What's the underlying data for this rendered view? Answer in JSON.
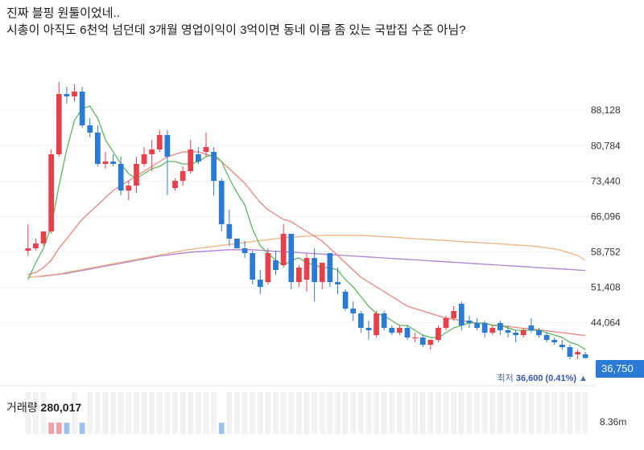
{
  "caption": {
    "line1": "진짜 블핑 원툴이었네..",
    "line2": "시총이 아직도 6천억 넘던데 3개월 영업이익이 3억이면 동네 이름 좀 있는 국밥집 수준 아님?"
  },
  "current_price": "36,750",
  "low": {
    "label": "최저",
    "value": "36,600 (0.41%)",
    "marker": "▲"
  },
  "volume": {
    "label": "거래량",
    "value": "280,017",
    "scale": "8.36m"
  },
  "colors": {
    "up": "#e8404a",
    "down": "#2b7bd6",
    "ma5": "#5cb85c",
    "ma20": "#e8847c",
    "ma60": "#f0b37e",
    "ma120": "#b07ed6",
    "badge": "#2b7bd6"
  },
  "chart_data": {
    "type": "candlestick",
    "y_ticks": [
      "88,128",
      "80,784",
      "73,440",
      "66,096",
      "58,752",
      "51,408",
      "44,064"
    ],
    "ylim": [
      34000,
      96000
    ],
    "grid": true,
    "series": [
      {
        "name": "candles",
        "values": [
          [
            59000,
            64500,
            58000,
            59500
          ],
          [
            59500,
            61500,
            59000,
            60500
          ],
          [
            60500,
            62500,
            60000,
            63000
          ],
          [
            63000,
            80000,
            62500,
            79000
          ],
          [
            79000,
            94000,
            78500,
            91500
          ],
          [
            91500,
            93000,
            89500,
            91000
          ],
          [
            91000,
            93500,
            90000,
            92000
          ],
          [
            92000,
            93000,
            84500,
            85000
          ],
          [
            85000,
            86500,
            82500,
            83500
          ],
          [
            83500,
            85000,
            76500,
            77000
          ],
          [
            77000,
            79500,
            76000,
            77500
          ],
          [
            77500,
            79000,
            76500,
            77000
          ],
          [
            77000,
            78500,
            70500,
            71500
          ],
          [
            71500,
            73500,
            69500,
            72500
          ],
          [
            72500,
            78500,
            71000,
            77000
          ],
          [
            77000,
            80500,
            76500,
            79000
          ],
          [
            79000,
            82000,
            75500,
            80000
          ],
          [
            80000,
            84000,
            79500,
            83000
          ],
          [
            83000,
            84000,
            70500,
            78500
          ],
          [
            72000,
            74000,
            71500,
            73500
          ],
          [
            73500,
            76500,
            72500,
            75500
          ],
          [
            75500,
            82000,
            75000,
            80000
          ],
          [
            79000,
            80500,
            77000,
            77500
          ],
          [
            79500,
            83500,
            78500,
            80500
          ],
          [
            79500,
            80500,
            70500,
            73500
          ],
          [
            73500,
            74000,
            63000,
            64500
          ],
          [
            64500,
            67500,
            60000,
            61500
          ],
          [
            61500,
            61500,
            59500,
            59500
          ],
          [
            59500,
            61000,
            57500,
            58500
          ],
          [
            58500,
            59000,
            52000,
            53000
          ],
          [
            53000,
            55000,
            50000,
            51500
          ],
          [
            52500,
            59500,
            52000,
            58500
          ],
          [
            57000,
            59000,
            54000,
            55000
          ],
          [
            56000,
            64500,
            55500,
            62500
          ],
          [
            62500,
            62500,
            51000,
            52500
          ],
          [
            52500,
            56000,
            51500,
            55500
          ],
          [
            53000,
            58500,
            50500,
            57500
          ],
          [
            57500,
            59500,
            48500,
            52500
          ],
          [
            52500,
            56500,
            51000,
            56500
          ],
          [
            58500,
            58500,
            51500,
            52500
          ],
          [
            52500,
            55500,
            50000,
            52000
          ],
          [
            50500,
            51000,
            46500,
            47000
          ],
          [
            47000,
            48500,
            44500,
            46000
          ],
          [
            46000,
            46500,
            42000,
            43000
          ],
          [
            43000,
            44500,
            40500,
            42500
          ],
          [
            41500,
            46500,
            41000,
            46000
          ],
          [
            46000,
            46500,
            42500,
            43000
          ],
          [
            43000,
            43500,
            41500,
            42000
          ],
          [
            42000,
            43500,
            41500,
            43000
          ],
          [
            43000,
            43500,
            40500,
            41000
          ],
          [
            41000,
            42000,
            40000,
            41000
          ],
          [
            41000,
            41500,
            39000,
            39500
          ],
          [
            39500,
            40500,
            38500,
            40500
          ],
          [
            40500,
            43500,
            40000,
            43000
          ],
          [
            43000,
            45500,
            42500,
            45000
          ],
          [
            45000,
            47500,
            44500,
            46500
          ],
          [
            48000,
            48500,
            42500,
            43500
          ],
          [
            44500,
            45500,
            43000,
            44000
          ],
          [
            44000,
            45000,
            42500,
            43000
          ],
          [
            44000,
            44500,
            41000,
            42000
          ],
          [
            42000,
            43500,
            41500,
            43000
          ],
          [
            44000,
            44500,
            41500,
            42500
          ],
          [
            42500,
            43500,
            41000,
            42000
          ],
          [
            42000,
            42500,
            40000,
            41500
          ],
          [
            41500,
            43000,
            41000,
            42500
          ],
          [
            43500,
            45000,
            42000,
            42500
          ],
          [
            42500,
            43000,
            41000,
            41500
          ],
          [
            41500,
            42000,
            40000,
            40500
          ],
          [
            40500,
            41000,
            39500,
            40000
          ],
          [
            39500,
            40500,
            38500,
            39000
          ],
          [
            39000,
            39500,
            36500,
            37000
          ],
          [
            37500,
            38500,
            36500,
            38000
          ],
          [
            37500,
            38000,
            36600,
            36750
          ]
        ]
      },
      {
        "name": "ma5",
        "values": [
          53000,
          56500,
          59500,
          64000,
          72500,
          80000,
          86000,
          88500,
          89000,
          86500,
          82000,
          79500,
          77000,
          75000,
          74000,
          75000,
          76000,
          76500,
          77500,
          77500,
          77000,
          77000,
          77500,
          78500,
          79000,
          77500,
          74000,
          71000,
          68500,
          63500,
          60000,
          58500,
          57000,
          56000,
          57000,
          57500,
          56500,
          56000,
          55500,
          55500,
          55000,
          53000,
          51500,
          49500,
          47500,
          46000,
          45500,
          44500,
          43500,
          43500,
          42500,
          41500,
          41000,
          41000,
          42000,
          43000,
          43500,
          44000,
          44000,
          44000,
          43500,
          43500,
          43000,
          42500,
          42500,
          42500,
          42500,
          42000,
          41500,
          41000,
          40000,
          39500,
          38500
        ]
      },
      {
        "name": "ma20",
        "values": [
          54000,
          54500,
          55500,
          57000,
          59500,
          61500,
          63500,
          65500,
          67000,
          68500,
          70000,
          71500,
          72500,
          73500,
          74500,
          75500,
          76500,
          77500,
          78500,
          79000,
          79500,
          79500,
          79500,
          79000,
          78500,
          77500,
          76000,
          74500,
          73000,
          71000,
          69000,
          67500,
          66500,
          65500,
          65000,
          64000,
          63000,
          62000,
          61000,
          59500,
          58000,
          56500,
          55000,
          53500,
          52500,
          51500,
          50500,
          49500,
          48500,
          47500,
          47000,
          46500,
          46000,
          45500,
          45000,
          44800,
          44500,
          44300,
          44000,
          43800,
          43600,
          43500,
          43300,
          43100,
          42900,
          42800,
          42600,
          42400,
          42200,
          42000,
          41800,
          41600,
          41400
        ]
      },
      {
        "name": "ma60",
        "values": [
          53500,
          53600,
          53800,
          54000,
          54200,
          54500,
          54800,
          55100,
          55400,
          55700,
          56000,
          56300,
          56600,
          56900,
          57200,
          57500,
          57800,
          58100,
          58400,
          58700,
          59000,
          59300,
          59500,
          59700,
          59900,
          60100,
          60300,
          60500,
          60700,
          60900,
          61100,
          61300,
          61500,
          61700,
          61800,
          61900,
          62000,
          62100,
          62200,
          62200,
          62200,
          62200,
          62200,
          62200,
          62100,
          62000,
          61900,
          61800,
          61700,
          61600,
          61500,
          61400,
          61300,
          61200,
          61100,
          61000,
          60900,
          60800,
          60700,
          60600,
          60500,
          60400,
          60300,
          60200,
          60100,
          60000,
          59800,
          59600,
          59400,
          59000,
          58500,
          58000,
          57000
        ]
      },
      {
        "name": "ma120",
        "values": [
          53500,
          53600,
          53700,
          53900,
          54100,
          54300,
          54600,
          54900,
          55200,
          55500,
          55800,
          56100,
          56400,
          56700,
          57000,
          57300,
          57600,
          57900,
          58100,
          58300,
          58500,
          58700,
          58800,
          58900,
          59000,
          59100,
          59200,
          59200,
          59200,
          59200,
          59100,
          59000,
          58900,
          58800,
          58700,
          58600,
          58500,
          58400,
          58300,
          58200,
          58100,
          58000,
          57900,
          57800,
          57700,
          57600,
          57500,
          57400,
          57300,
          57200,
          57100,
          57000,
          56900,
          56800,
          56700,
          56600,
          56500,
          56400,
          56300,
          56200,
          56100,
          56000,
          55900,
          55800,
          55700,
          55600,
          55500,
          55400,
          55300,
          55200,
          55100,
          55000,
          54900
        ]
      },
      {
        "name": "volume",
        "values": [
          1.2,
          1.0,
          0.9,
          3.5,
          6.2,
          4.0,
          3.1,
          3.4,
          2.5,
          2.8,
          2.0,
          1.6,
          2.4,
          1.9,
          2.2,
          1.8,
          2.6,
          2.9,
          3.3,
          1.6,
          1.4,
          2.2,
          1.5,
          2.1,
          2.9,
          3.4,
          2.0,
          1.3,
          1.2,
          2.5,
          1.7,
          2.7,
          1.5,
          3.1,
          3.3,
          1.6,
          2.2,
          2.9,
          1.7,
          1.9,
          1.3,
          1.8,
          1.4,
          1.9,
          1.6,
          2.3,
          1.4,
          1.1,
          1.2,
          1.5,
          1.0,
          1.2,
          1.1,
          1.6,
          2.0,
          2.1,
          1.7,
          1.3,
          1.2,
          1.3,
          1.0,
          1.4,
          1.1,
          1.2,
          1.3,
          1.5,
          1.1,
          1.0,
          1.1,
          1.2,
          1.6,
          1.3,
          1.4
        ]
      }
    ]
  }
}
